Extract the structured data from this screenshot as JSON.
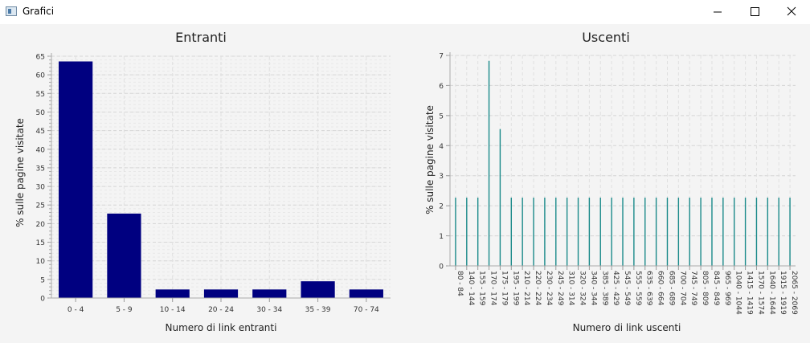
{
  "window": {
    "title": "Grafici"
  },
  "controls": {
    "minimize_icon": "minimize-icon",
    "maximize_icon": "maximize-icon",
    "close_icon": "close-icon"
  },
  "chart_data": [
    {
      "type": "bar",
      "title": "Entranti",
      "xlabel": "Numero di link entranti",
      "ylabel": "% sulle pagine visitate",
      "ylim": [
        0,
        65
      ],
      "grid": true,
      "color": "#000080",
      "categories": [
        "0 - 4",
        "5 - 9",
        "10 - 14",
        "20 - 24",
        "30 - 34",
        "35 - 39",
        "70 - 74"
      ],
      "values": [
        63.6,
        22.7,
        2.3,
        2.3,
        2.3,
        4.5,
        2.3
      ]
    },
    {
      "type": "bar",
      "title": "Uscenti",
      "xlabel": "Numero di link uscenti",
      "ylabel": "% sulle pagine visitate",
      "ylim": [
        0,
        7
      ],
      "grid": true,
      "color": "#1a8a8a",
      "categories": [
        "80 - 84",
        "140 - 144",
        "155 - 159",
        "170 - 174",
        "175 - 179",
        "195 - 199",
        "210 - 214",
        "220 - 224",
        "230 - 234",
        "245 - 249",
        "310 - 314",
        "320 - 324",
        "340 - 344",
        "385 - 389",
        "425 - 429",
        "545 - 549",
        "555 - 559",
        "635 - 639",
        "660 - 664",
        "685 - 689",
        "700 - 704",
        "745 - 749",
        "805 - 809",
        "845 - 849",
        "965 - 969",
        "1040 - 1044",
        "1415 - 1419",
        "1570 - 1574",
        "1640 - 1644",
        "1915 - 1919",
        "2065 - 2069"
      ],
      "values": [
        2.27,
        2.27,
        2.27,
        6.82,
        4.55,
        2.27,
        2.27,
        2.27,
        2.27,
        2.27,
        2.27,
        2.27,
        2.27,
        2.27,
        2.27,
        2.27,
        2.27,
        2.27,
        2.27,
        2.27,
        2.27,
        2.27,
        2.27,
        2.27,
        2.27,
        2.27,
        2.27,
        2.27,
        2.27,
        2.27,
        2.27
      ]
    }
  ]
}
